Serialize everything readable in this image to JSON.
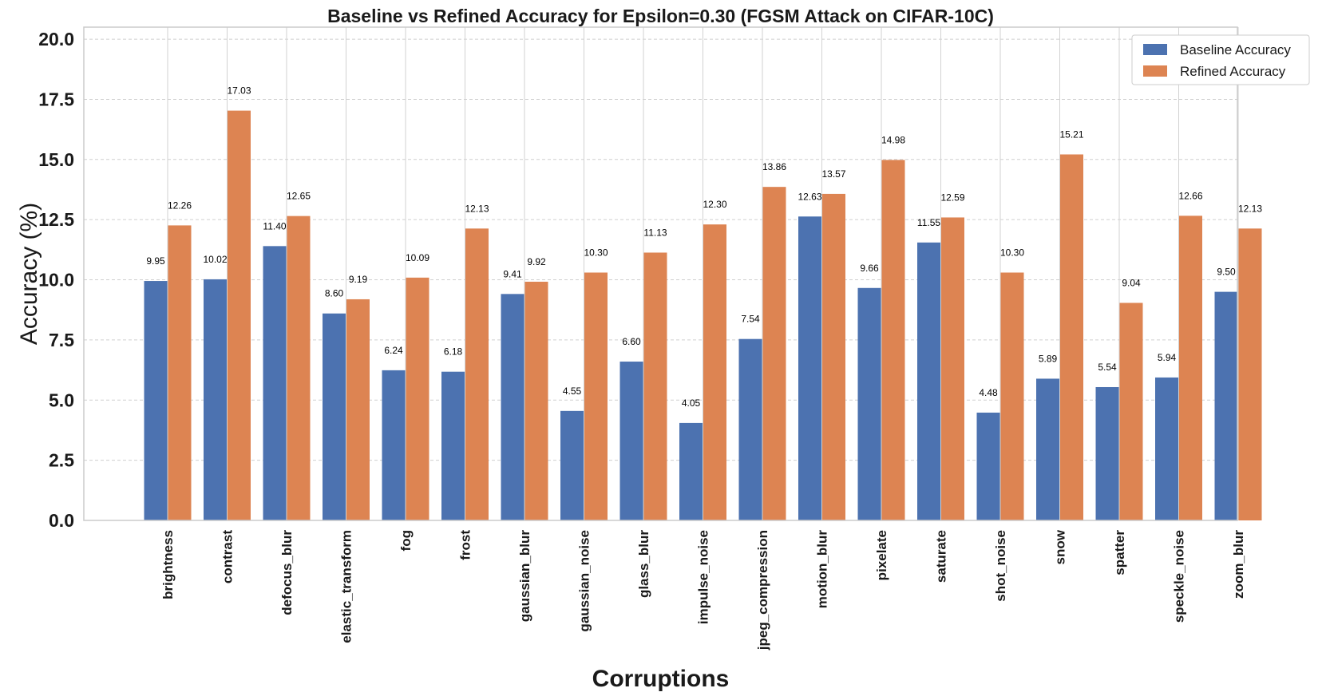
{
  "chart_data": {
    "type": "bar",
    "title": "Baseline vs Refined Accuracy for Epsilon=0.30 (FGSM Attack on CIFAR-10C)",
    "xlabel": "Corruptions",
    "ylabel": "Accuracy (%)",
    "ylim": [
      0,
      20.5
    ],
    "yticks": [
      "0.0",
      "2.5",
      "5.0",
      "7.5",
      "10.0",
      "12.5",
      "15.0",
      "17.5",
      "20.0"
    ],
    "grid": true,
    "legend_position": "top-right",
    "categories": [
      "brightness",
      "contrast",
      "defocus_blur",
      "elastic_transform",
      "fog",
      "frost",
      "gaussian_blur",
      "gaussian_noise",
      "glass_blur",
      "impulse_noise",
      "jpeg_compression",
      "motion_blur",
      "pixelate",
      "saturate",
      "shot_noise",
      "snow",
      "spatter",
      "speckle_noise",
      "zoom_blur"
    ],
    "series": [
      {
        "name": "Baseline Accuracy",
        "color": "#4c72b0",
        "values": [
          9.95,
          10.02,
          11.4,
          8.6,
          6.24,
          6.18,
          9.41,
          4.55,
          6.6,
          4.05,
          7.54,
          12.63,
          9.66,
          11.55,
          4.48,
          5.89,
          5.54,
          5.94,
          9.5
        ],
        "labels": [
          "9.95",
          "10.02",
          "11.40",
          "8.60",
          "6.24",
          "6.18",
          "9.41",
          "4.55",
          "6.60",
          "4.05",
          "7.54",
          "12.63",
          "9.66",
          "11.55",
          "4.48",
          "5.89",
          "5.54",
          "5.94",
          "9.50"
        ]
      },
      {
        "name": "Refined Accuracy",
        "color": "#dd8452",
        "values": [
          12.26,
          17.03,
          12.65,
          9.19,
          10.09,
          12.13,
          9.92,
          10.3,
          11.13,
          12.3,
          13.86,
          13.57,
          14.98,
          12.59,
          10.3,
          15.21,
          9.04,
          12.66,
          12.13
        ],
        "labels": [
          "12.26",
          "17.03",
          "12.65",
          "9.19",
          "10.09",
          "12.13",
          "9.92",
          "10.30",
          "11.13",
          "12.30",
          "13.86",
          "13.57",
          "14.98",
          "12.59",
          "10.30",
          "15.21",
          "9.04",
          "12.66",
          "12.13"
        ]
      }
    ]
  }
}
